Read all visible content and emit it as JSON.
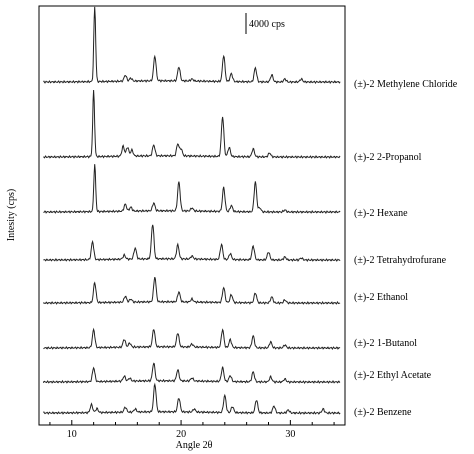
{
  "chart_data": {
    "type": "line",
    "title": "",
    "xlabel": "Angle 2θ",
    "ylabel": "Intesity (cps)",
    "xlim": [
      7,
      35
    ],
    "x_ticks": [
      10,
      20,
      30
    ],
    "x_tick_labels": [
      "10",
      "20",
      "30"
    ],
    "grid": false,
    "legend": "labels right of each trace",
    "scale_bar": {
      "label": "4000 cps",
      "value_cps": 4000
    },
    "series": [
      {
        "name": "(±)-2 Methylene Chloride",
        "peaks": [
          [
            12.1,
            75
          ],
          [
            14.9,
            6
          ],
          [
            15.4,
            3
          ],
          [
            17.6,
            25
          ],
          [
            19.8,
            14
          ],
          [
            21.0,
            2
          ],
          [
            23.9,
            26
          ],
          [
            24.6,
            8
          ],
          [
            26.8,
            14
          ],
          [
            28.3,
            7
          ],
          [
            29.5,
            3
          ],
          [
            31.0,
            3
          ]
        ]
      },
      {
        "name": "(±)-2  2-Propanol",
        "peaks": [
          [
            12.0,
            66
          ],
          [
            14.7,
            10
          ],
          [
            15.1,
            9
          ],
          [
            15.5,
            6
          ],
          [
            17.5,
            11
          ],
          [
            19.7,
            12
          ],
          [
            20.0,
            7
          ],
          [
            23.8,
            40
          ],
          [
            24.4,
            9
          ],
          [
            26.6,
            8
          ],
          [
            28.1,
            4
          ]
        ]
      },
      {
        "name": "(±)-2  Hexane",
        "peaks": [
          [
            12.1,
            47
          ],
          [
            14.9,
            7
          ],
          [
            15.4,
            4
          ],
          [
            17.5,
            8
          ],
          [
            19.8,
            29
          ],
          [
            21.0,
            3
          ],
          [
            23.9,
            24
          ],
          [
            24.6,
            6
          ],
          [
            26.8,
            30
          ],
          [
            27.2,
            4
          ],
          [
            29.5,
            2
          ]
        ]
      },
      {
        "name": "(±)-2  Tetrahydrofurane",
        "peaks": [
          [
            11.9,
            18
          ],
          [
            14.8,
            4
          ],
          [
            15.8,
            11
          ],
          [
            17.4,
            35
          ],
          [
            19.7,
            14
          ],
          [
            21.0,
            3
          ],
          [
            23.7,
            15
          ],
          [
            24.5,
            6
          ],
          [
            26.6,
            14
          ],
          [
            28.0,
            8
          ],
          [
            29.5,
            3
          ],
          [
            31.0,
            2
          ]
        ]
      },
      {
        "name": "(±)-2  Ethanol",
        "peaks": [
          [
            12.1,
            20
          ],
          [
            14.9,
            6
          ],
          [
            15.4,
            3
          ],
          [
            17.6,
            25
          ],
          [
            19.8,
            10
          ],
          [
            21.0,
            3
          ],
          [
            23.9,
            15
          ],
          [
            24.6,
            8
          ],
          [
            26.8,
            10
          ],
          [
            28.3,
            6
          ],
          [
            29.5,
            3
          ]
        ]
      },
      {
        "name": "(±)-2  1-Butanol",
        "peaks": [
          [
            12.0,
            18
          ],
          [
            14.8,
            8
          ],
          [
            15.3,
            4
          ],
          [
            17.5,
            18
          ],
          [
            19.7,
            14
          ],
          [
            21.0,
            3
          ],
          [
            23.8,
            18
          ],
          [
            24.5,
            8
          ],
          [
            26.6,
            12
          ],
          [
            28.2,
            6
          ],
          [
            29.5,
            3
          ]
        ]
      },
      {
        "name": "(±)-2  Ethyl Acetate",
        "peaks": [
          [
            12.0,
            14
          ],
          [
            14.8,
            5
          ],
          [
            15.3,
            3
          ],
          [
            17.5,
            18
          ],
          [
            19.7,
            11
          ],
          [
            21.0,
            3
          ],
          [
            23.8,
            14
          ],
          [
            24.5,
            6
          ],
          [
            26.6,
            10
          ],
          [
            28.2,
            5
          ],
          [
            29.5,
            3
          ]
        ]
      },
      {
        "name": "(±)-2  Benzene",
        "peaks": [
          [
            11.8,
            8
          ],
          [
            12.3,
            4
          ],
          [
            14.9,
            5
          ],
          [
            15.8,
            3
          ],
          [
            17.6,
            28
          ],
          [
            19.8,
            14
          ],
          [
            21.2,
            3
          ],
          [
            24.0,
            17
          ],
          [
            24.7,
            6
          ],
          [
            26.9,
            13
          ],
          [
            28.5,
            7
          ],
          [
            29.8,
            3
          ],
          [
            33.0,
            4
          ]
        ]
      }
    ]
  }
}
